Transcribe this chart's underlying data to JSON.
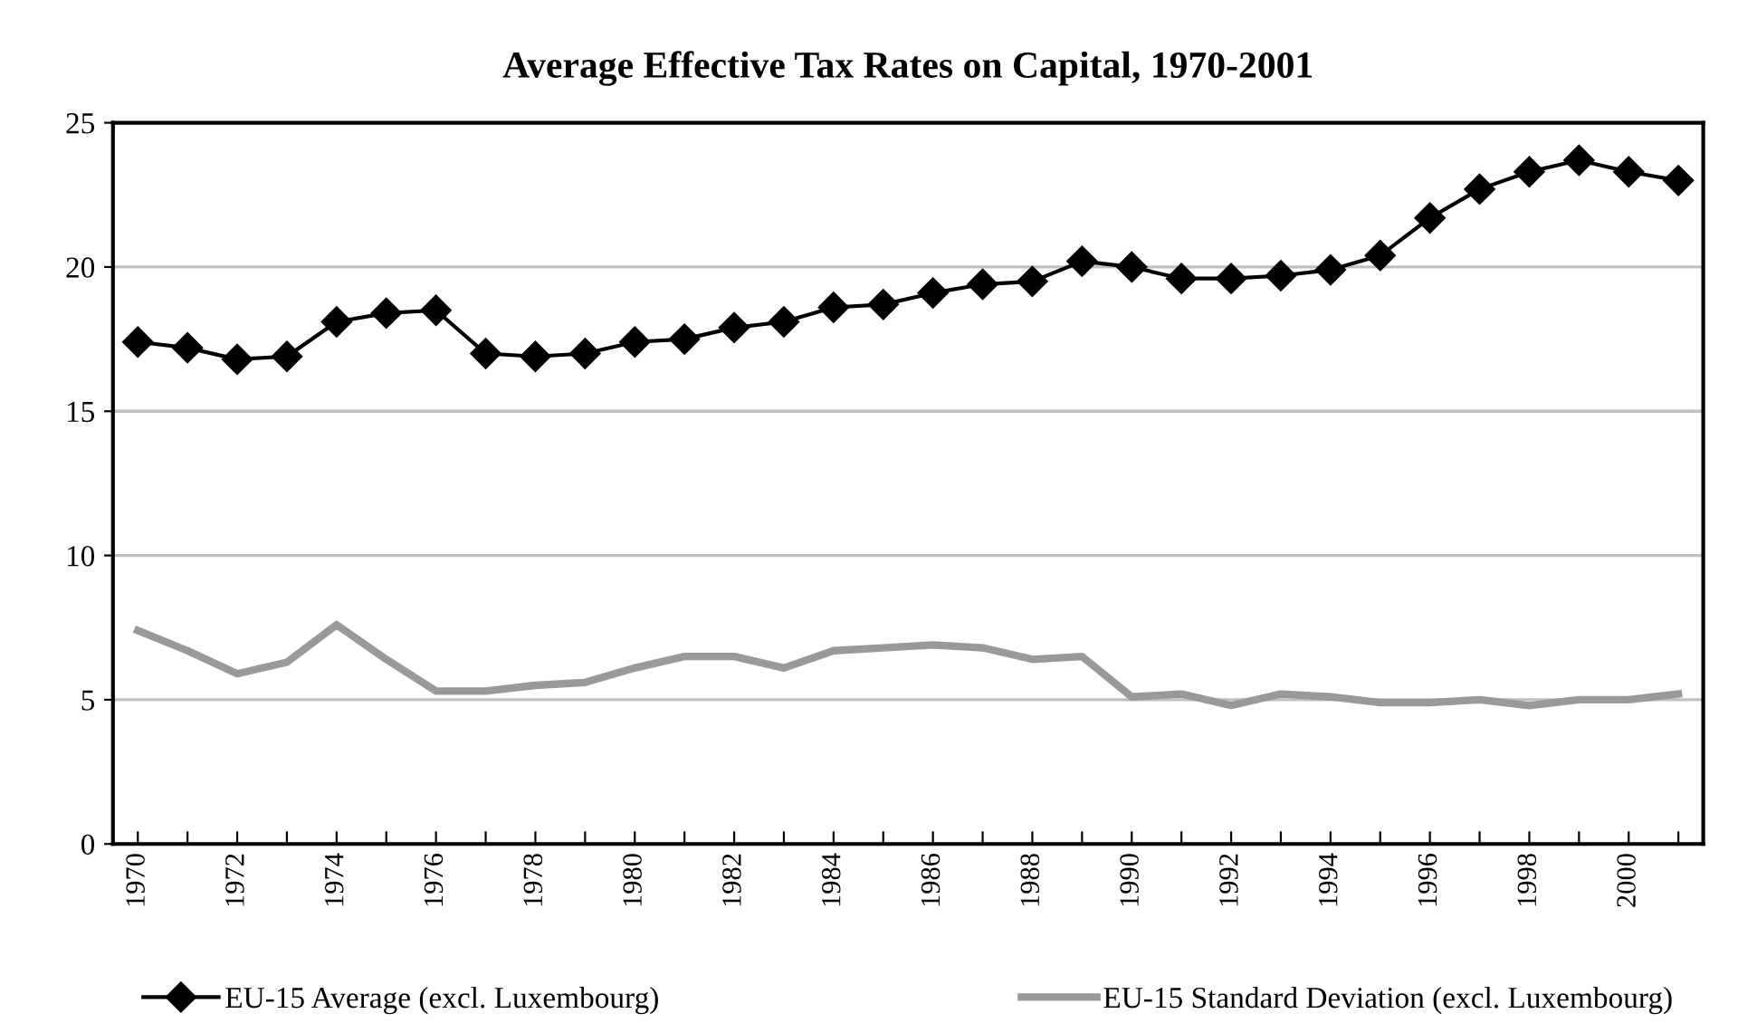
{
  "chart_data": {
    "type": "line",
    "title": "Average Effective Tax Rates on Capital, 1970-2001",
    "x": [
      1970,
      1971,
      1972,
      1973,
      1974,
      1975,
      1976,
      1977,
      1978,
      1979,
      1980,
      1981,
      1982,
      1983,
      1984,
      1985,
      1986,
      1987,
      1988,
      1989,
      1990,
      1991,
      1992,
      1993,
      1994,
      1995,
      1996,
      1997,
      1998,
      1999,
      2000,
      2001
    ],
    "xlim": [
      1969.5,
      2001.5
    ],
    "xticks": [
      1970,
      {
        "value": 1971,
        "label": null
      },
      1972,
      {
        "value": 1973,
        "label": null
      },
      1974,
      {
        "value": 1975,
        "label": null
      },
      1976,
      {
        "value": 1977,
        "label": null
      },
      1978,
      {
        "value": 1979,
        "label": null
      },
      1980,
      {
        "value": 1981,
        "label": null
      },
      1982,
      {
        "value": 1983,
        "label": null
      },
      1984,
      {
        "value": 1985,
        "label": null
      },
      1986,
      {
        "value": 1987,
        "label": null
      },
      1988,
      {
        "value": 1989,
        "label": null
      },
      1990,
      {
        "value": 1991,
        "label": null
      },
      1992,
      {
        "value": 1993,
        "label": null
      },
      1994,
      {
        "value": 1995,
        "label": null
      },
      1996,
      {
        "value": 1997,
        "label": null
      },
      1998,
      {
        "value": 1999,
        "label": null
      },
      2000,
      {
        "value": 2001,
        "label": null
      }
    ],
    "ylim": [
      0,
      25
    ],
    "yticks": [
      0,
      5,
      10,
      15,
      20,
      25
    ],
    "grid": "y",
    "legend": "bottom",
    "series": [
      {
        "name": "EU-15 Average (excl. Luxembourg)",
        "color": "#000000",
        "marker": "diamond",
        "values": [
          17.4,
          17.2,
          16.8,
          16.9,
          18.1,
          18.4,
          18.5,
          17.0,
          16.9,
          17.0,
          17.4,
          17.5,
          17.9,
          18.1,
          18.6,
          18.7,
          19.1,
          19.4,
          19.5,
          20.2,
          20.0,
          19.6,
          19.6,
          19.7,
          19.9,
          20.4,
          21.7,
          22.7,
          23.3,
          23.7,
          23.3,
          23.0
        ]
      },
      {
        "name": "EU-15 Standard Deviation (excl. Luxembourg)",
        "color": "#999999",
        "marker": "none",
        "values": [
          7.4,
          6.7,
          5.9,
          6.3,
          7.6,
          6.4,
          5.3,
          5.3,
          5.5,
          5.6,
          6.1,
          6.5,
          6.5,
          6.1,
          6.7,
          6.8,
          6.9,
          6.8,
          6.4,
          6.5,
          5.1,
          5.2,
          4.8,
          5.2,
          5.1,
          4.9,
          4.9,
          5.0,
          4.8,
          5.0,
          5.0,
          5.2
        ]
      }
    ]
  }
}
